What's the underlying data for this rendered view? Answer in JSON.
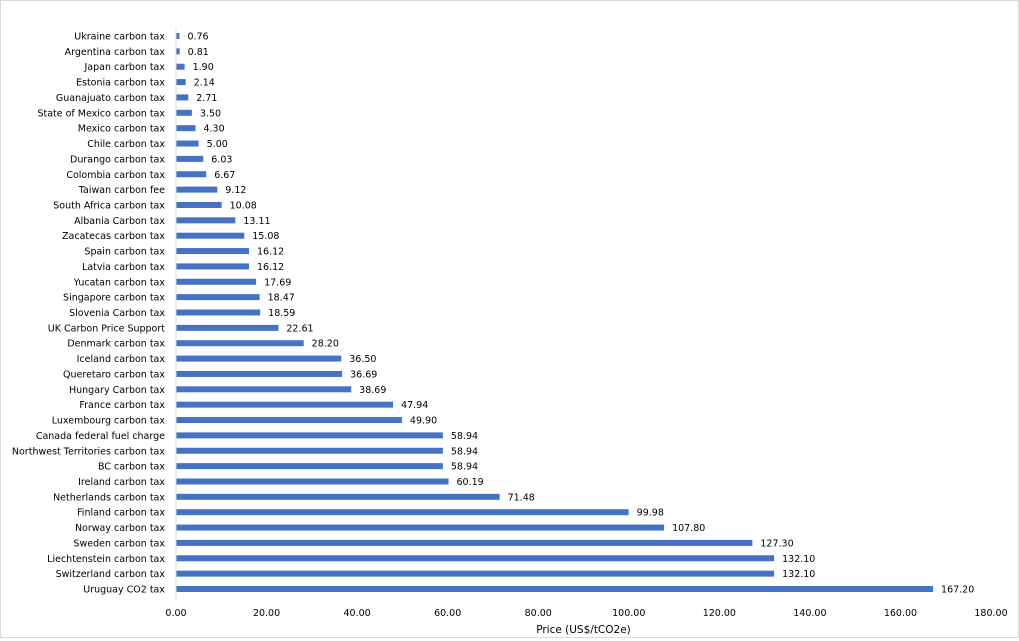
{
  "chart_data": {
    "type": "bar",
    "orientation": "horizontal",
    "xlabel": "Price (US$/tCO2e)",
    "ylabel": "",
    "title": "",
    "xlim": [
      0,
      180
    ],
    "xticks": [
      "0.00",
      "20.00",
      "40.00",
      "60.00",
      "80.00",
      "100.00",
      "120.00",
      "140.00",
      "160.00",
      "180.00"
    ],
    "grid": false,
    "bar_color": "#4472c4",
    "categories": [
      "Ukraine carbon tax",
      "Argentina carbon tax",
      "Japan carbon tax",
      "Estonia carbon tax",
      "Guanajuato carbon tax",
      "State of Mexico carbon tax",
      "Mexico carbon tax",
      "Chile carbon tax",
      "Durango carbon tax",
      "Colombia carbon tax",
      "Taiwan carbon fee",
      "South Africa carbon tax",
      "Albania Carbon tax",
      "Zacatecas carbon tax",
      "Spain carbon tax",
      "Latvia carbon tax",
      "Yucatan carbon tax",
      "Singapore carbon tax",
      "Slovenia Carbon tax",
      "UK Carbon Price Support",
      "Denmark carbon tax",
      "Iceland carbon tax",
      "Queretaro carbon tax",
      "Hungary Carbon tax",
      "France carbon tax",
      "Luxembourg carbon tax",
      "Canada federal fuel charge",
      "Northwest Territories carbon tax",
      "BC carbon tax",
      "Ireland carbon tax",
      "Netherlands carbon tax",
      "Finland carbon tax",
      "Norway carbon tax",
      "Sweden carbon tax",
      "Liechtenstein carbon tax",
      "Switzerland carbon tax",
      "Uruguay CO2 tax"
    ],
    "values": [
      0.76,
      0.81,
      1.9,
      2.14,
      2.71,
      3.5,
      4.3,
      5.0,
      6.03,
      6.67,
      9.12,
      10.08,
      13.11,
      15.08,
      16.12,
      16.12,
      17.69,
      18.47,
      18.59,
      22.61,
      28.2,
      36.5,
      36.69,
      38.69,
      47.94,
      49.9,
      58.94,
      58.94,
      58.94,
      60.19,
      71.48,
      99.98,
      107.8,
      127.3,
      132.1,
      132.1,
      167.2
    ],
    "value_labels": [
      "0.76",
      "0.81",
      "1.90",
      "2.14",
      "2.71",
      "3.50",
      "4.30",
      "5.00",
      "6.03",
      "6.67",
      "9.12",
      "10.08",
      "13.11",
      "15.08",
      "16.12",
      "16.12",
      "17.69",
      "18.47",
      "18.59",
      "22.61",
      "28.20",
      "36.50",
      "36.69",
      "38.69",
      "47.94",
      "49.90",
      "58.94",
      "58.94",
      "58.94",
      "60.19",
      "71.48",
      "99.98",
      "107.80",
      "127.30",
      "132.10",
      "132.10",
      "167.20"
    ]
  }
}
